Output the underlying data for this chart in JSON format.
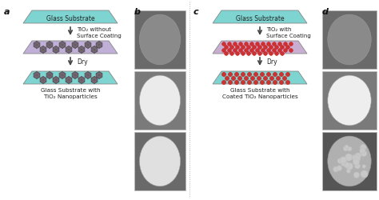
{
  "bg_color": "#ffffff",
  "panel_a_label": "a",
  "panel_b_label": "b",
  "panel_c_label": "c",
  "panel_d_label": "d",
  "glass_substrate_color": "#7dd4d0",
  "trap_fill_ab": "#c0b0d8",
  "trap_fill_cd": "#c8aed0",
  "trap_final_ab": "#7dd4d0",
  "trap_final_cd": "#7dd4d0",
  "particle_ab_color": "#7a6878",
  "particle_cd_color": "#cc3333",
  "arrow_color": "#444444",
  "text_color": "#222222",
  "label_color": "#111111",
  "divider_color": "#999999",
  "tio2_label_ab": "TiO₂ without\nSurface Coating",
  "tio2_label_cd": "TiO₂ with\nSurface Coating",
  "dry_label": "Dry",
  "glass_top_label": "Glass Substrate",
  "glass_bottom_label_ab": "Glass Substrate with\nTiO₂ Nanoparticles",
  "glass_bottom_label_cd": "Glass Substrate with\nCoated TiO₂ Nanoparticles",
  "photo_b1_bg": "#6a6a6a",
  "photo_b1_circle": "#8a8a8a",
  "photo_b2_bg": "#7a7a7a",
  "photo_b2_circle": "#ebebeb",
  "photo_b3_bg": "#6a6a6a",
  "photo_b3_circle": "#e0e0e0",
  "photo_d1_bg": "#6a6a6a",
  "photo_d1_circle": "#8a8a8a",
  "photo_d2_bg": "#7a7a7a",
  "photo_d2_circle": "#eeeeee",
  "photo_d3_bg": "#555555",
  "photo_d3_circle": "#b0b0b0"
}
